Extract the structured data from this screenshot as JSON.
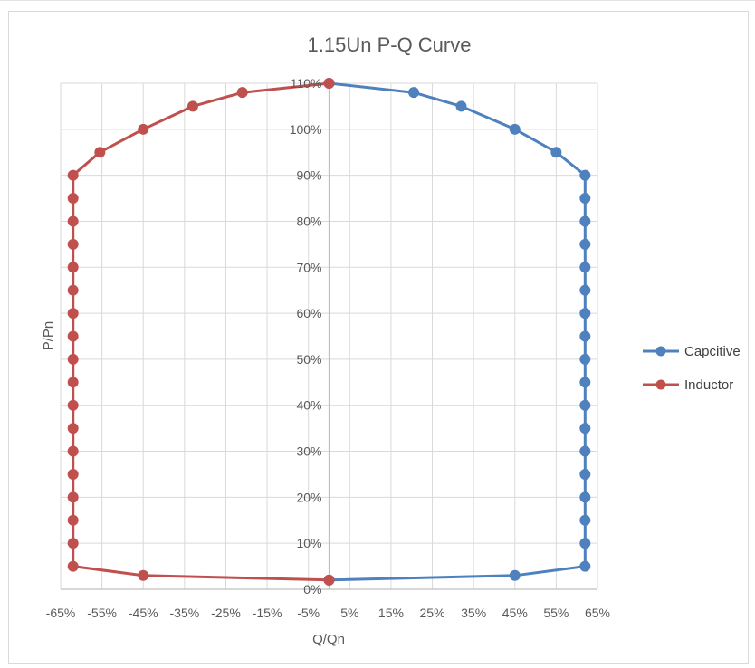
{
  "chart_data": {
    "type": "scatter",
    "title": "1.15Un P-Q Curve",
    "xlabel": "Q/Qn",
    "ylabel": "P/Pn",
    "xlim": [
      -0.65,
      0.65
    ],
    "ylim": [
      0,
      1.1
    ],
    "x_ticks": [
      "-65%",
      "-55%",
      "-45%",
      "-35%",
      "-25%",
      "-15%",
      "-5%",
      "5%",
      "15%",
      "25%",
      "35%",
      "45%",
      "55%",
      "65%"
    ],
    "y_ticks": [
      "0%",
      "10%",
      "20%",
      "30%",
      "40%",
      "50%",
      "60%",
      "70%",
      "80%",
      "90%",
      "100%",
      "110%"
    ],
    "grid": true,
    "legend_position": "right",
    "series": [
      {
        "name": "Capcitive",
        "color": "#4e81bd",
        "x": [
          0,
          0.45,
          0.62,
          0.62,
          0.62,
          0.62,
          0.62,
          0.62,
          0.62,
          0.62,
          0.62,
          0.62,
          0.62,
          0.62,
          0.62,
          0.62,
          0.62,
          0.62,
          0.62,
          0.62,
          0.55,
          0.45,
          0.32,
          0.205,
          0
        ],
        "y": [
          0.02,
          0.03,
          0.05,
          0.1,
          0.15,
          0.2,
          0.25,
          0.3,
          0.35,
          0.4,
          0.45,
          0.5,
          0.55,
          0.6,
          0.65,
          0.7,
          0.75,
          0.8,
          0.85,
          0.9,
          0.95,
          1.0,
          1.05,
          1.08,
          1.1
        ]
      },
      {
        "name": "Inductor",
        "color": "#c0504d",
        "x": [
          0,
          -0.45,
          -0.62,
          -0.62,
          -0.62,
          -0.62,
          -0.62,
          -0.62,
          -0.62,
          -0.62,
          -0.62,
          -0.62,
          -0.62,
          -0.62,
          -0.62,
          -0.62,
          -0.62,
          -0.62,
          -0.62,
          -0.62,
          -0.555,
          -0.45,
          -0.33,
          -0.21,
          0
        ],
        "y": [
          0.02,
          0.03,
          0.05,
          0.1,
          0.15,
          0.2,
          0.25,
          0.3,
          0.35,
          0.4,
          0.45,
          0.5,
          0.55,
          0.6,
          0.65,
          0.7,
          0.75,
          0.8,
          0.85,
          0.9,
          0.95,
          1.0,
          1.05,
          1.08,
          1.1
        ]
      }
    ],
    "colors": {
      "grid": "#d9d9d9",
      "axis": "#bfbfbf",
      "text": "#595959"
    }
  }
}
